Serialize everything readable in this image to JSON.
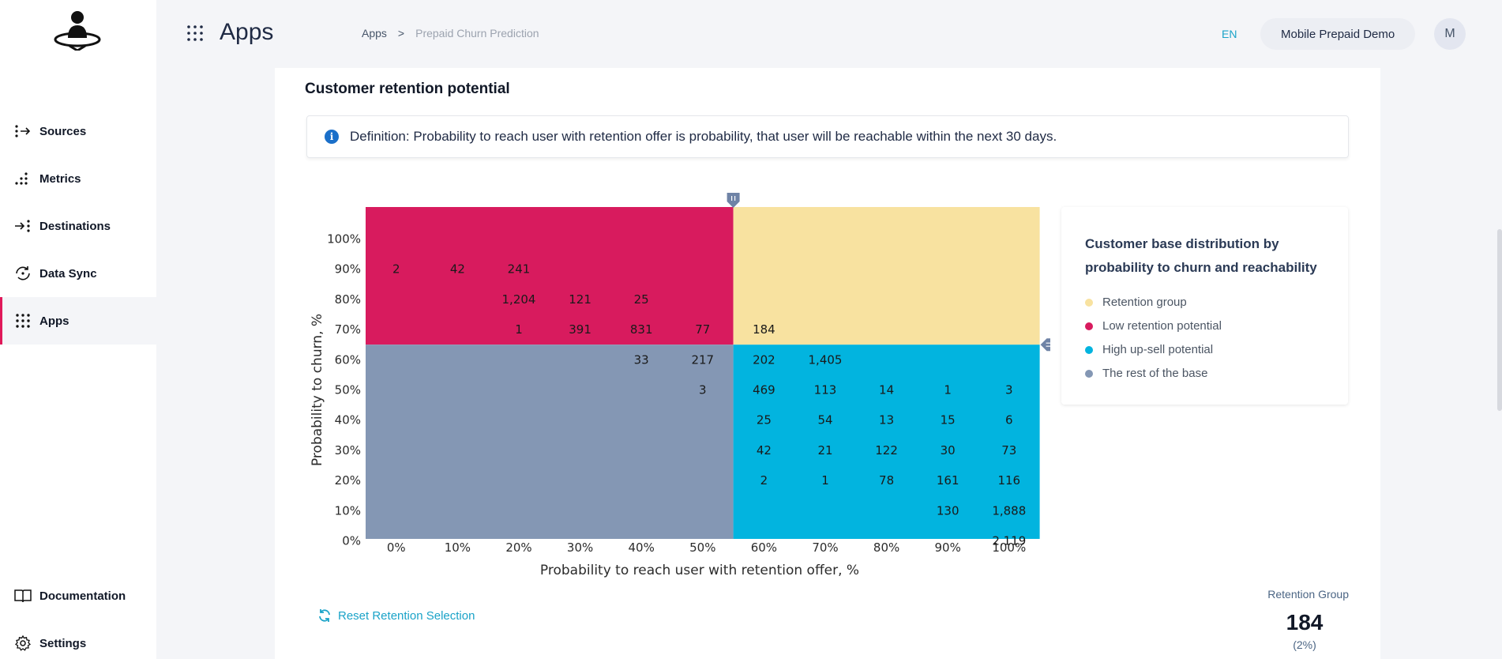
{
  "sidebar": {
    "items": [
      {
        "label": "Sources",
        "icon": "sources-icon"
      },
      {
        "label": "Metrics",
        "icon": "metrics-icon"
      },
      {
        "label": "Destinations",
        "icon": "destinations-icon"
      },
      {
        "label": "Data Sync",
        "icon": "data-sync-icon"
      },
      {
        "label": "Apps",
        "icon": "apps-icon",
        "active": true
      }
    ],
    "bottom": [
      {
        "label": "Documentation",
        "icon": "book-icon"
      },
      {
        "label": "Settings",
        "icon": "gear-icon"
      }
    ]
  },
  "header": {
    "title": "Apps",
    "breadcrumb": [
      "Apps",
      ">",
      "Prepaid Churn Prediction"
    ],
    "language": "EN",
    "workspace": "Mobile Prepaid Demo",
    "avatar": "M"
  },
  "card": {
    "title": "Customer retention potential",
    "definition": "Definition: Probability to reach user with retention offer is probability, that user will be reachable within the next 30 days."
  },
  "colors": {
    "retention": "#f8e2a0",
    "low_retention": "#d81b5e",
    "upsell": "#02b4df",
    "rest": "#8497b4",
    "accent": "#1aa3c8"
  },
  "legend": {
    "title": "Customer base distribution by probability to churn and reachability",
    "items": [
      {
        "label": "Retention group",
        "color": "#f8e2a0"
      },
      {
        "label": "Low retention potential",
        "color": "#d81b5e"
      },
      {
        "label": "High up-sell potential",
        "color": "#02b4df"
      },
      {
        "label": "The rest of the base",
        "color": "#8497b4"
      }
    ]
  },
  "chart_data": {
    "type": "heatmap",
    "xlabel": "Probability to reach user with retention offer, %",
    "ylabel": "Probability to churn, %",
    "x_categories": [
      "0%",
      "10%",
      "20%",
      "30%",
      "40%",
      "50%",
      "60%",
      "70%",
      "80%",
      "90%",
      "100%"
    ],
    "y_categories": [
      "100%",
      "90%",
      "80%",
      "70%",
      "60%",
      "50%",
      "40%",
      "30%",
      "20%",
      "10%",
      "0%"
    ],
    "thresholds": {
      "reach_between": [
        "50%",
        "60%"
      ],
      "churn_between": [
        "60%",
        "70%"
      ]
    },
    "cells": [
      {
        "x": "0%",
        "y": "90%",
        "value": "2"
      },
      {
        "x": "10%",
        "y": "90%",
        "value": "42"
      },
      {
        "x": "20%",
        "y": "90%",
        "value": "241"
      },
      {
        "x": "20%",
        "y": "80%",
        "value": "1,204"
      },
      {
        "x": "30%",
        "y": "80%",
        "value": "121"
      },
      {
        "x": "40%",
        "y": "80%",
        "value": "25"
      },
      {
        "x": "20%",
        "y": "70%",
        "value": "1"
      },
      {
        "x": "30%",
        "y": "70%",
        "value": "391"
      },
      {
        "x": "40%",
        "y": "70%",
        "value": "831"
      },
      {
        "x": "50%",
        "y": "70%",
        "value": "77"
      },
      {
        "x": "60%",
        "y": "70%",
        "value": "184"
      },
      {
        "x": "40%",
        "y": "60%",
        "value": "33"
      },
      {
        "x": "50%",
        "y": "60%",
        "value": "217"
      },
      {
        "x": "60%",
        "y": "60%",
        "value": "202"
      },
      {
        "x": "70%",
        "y": "60%",
        "value": "1,405"
      },
      {
        "x": "50%",
        "y": "50%",
        "value": "3"
      },
      {
        "x": "60%",
        "y": "50%",
        "value": "469"
      },
      {
        "x": "70%",
        "y": "50%",
        "value": "113"
      },
      {
        "x": "80%",
        "y": "50%",
        "value": "14"
      },
      {
        "x": "90%",
        "y": "50%",
        "value": "1"
      },
      {
        "x": "100%",
        "y": "50%",
        "value": "3"
      },
      {
        "x": "60%",
        "y": "40%",
        "value": "25"
      },
      {
        "x": "70%",
        "y": "40%",
        "value": "54"
      },
      {
        "x": "80%",
        "y": "40%",
        "value": "13"
      },
      {
        "x": "90%",
        "y": "40%",
        "value": "15"
      },
      {
        "x": "100%",
        "y": "40%",
        "value": "6"
      },
      {
        "x": "60%",
        "y": "30%",
        "value": "42"
      },
      {
        "x": "70%",
        "y": "30%",
        "value": "21"
      },
      {
        "x": "80%",
        "y": "30%",
        "value": "122"
      },
      {
        "x": "90%",
        "y": "30%",
        "value": "30"
      },
      {
        "x": "100%",
        "y": "30%",
        "value": "73"
      },
      {
        "x": "60%",
        "y": "20%",
        "value": "2"
      },
      {
        "x": "70%",
        "y": "20%",
        "value": "1"
      },
      {
        "x": "80%",
        "y": "20%",
        "value": "78"
      },
      {
        "x": "90%",
        "y": "20%",
        "value": "161"
      },
      {
        "x": "100%",
        "y": "20%",
        "value": "116"
      },
      {
        "x": "90%",
        "y": "10%",
        "value": "130"
      },
      {
        "x": "100%",
        "y": "10%",
        "value": "1,888"
      },
      {
        "x": "100%",
        "y": "0%",
        "value": "2,119"
      }
    ]
  },
  "footer": {
    "reset_label": "Reset Retention Selection",
    "retention_group_label": "Retention Group",
    "retention_group_value": "184",
    "retention_group_pct": "(2%)"
  }
}
